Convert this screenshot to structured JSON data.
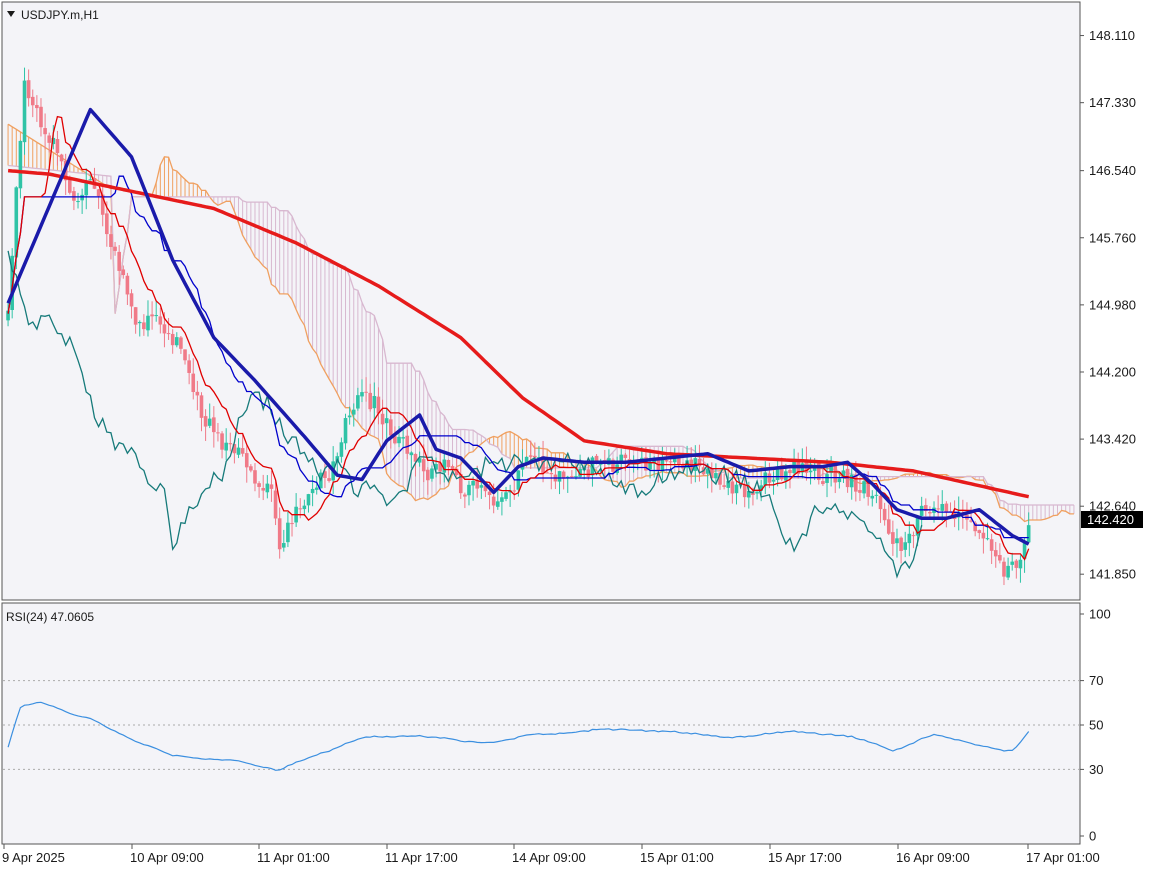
{
  "chart_title": "USDJPY.m,H1",
  "colors": {
    "background": "#f4f4f8",
    "bull_candle": "#2fc3a6",
    "bear_candle": "#f07a88",
    "tenkan": "#e00000",
    "kijun": "#0000cc",
    "chikou": "#167a7a",
    "senkou_a": "#f0a060",
    "senkou_b": "#d8b8d0",
    "ma_slow": "#e61b1b",
    "ma_fast": "#1a1aaa",
    "rsi_line": "#3b8fe0",
    "price_tag_bg": "#000000",
    "price_tag_text": "#ffffff"
  },
  "chart_data": [
    {
      "type": "line",
      "name": "USDJPY.m H1 price panel",
      "title": "USDJPY.m,H1",
      "ylim": [
        141.55,
        148.5
      ],
      "y_ticks": [
        "148.110",
        "147.330",
        "146.540",
        "145.760",
        "144.980",
        "144.200",
        "143.420",
        "142.640",
        "141.850"
      ],
      "x_ticks": [
        "9 Apr 2025",
        "10 Apr 09:00",
        "11 Apr 01:00",
        "11 Apr 17:00",
        "14 Apr 09:00",
        "15 Apr 01:00",
        "15 Apr 17:00",
        "16 Apr 09:00",
        "17 Apr 01:00"
      ],
      "current_price": "142.420",
      "close_anchors": [
        [
          0,
          144.95
        ],
        [
          4,
          147.6
        ],
        [
          8,
          147.1
        ],
        [
          12,
          146.8
        ],
        [
          16,
          146.2
        ],
        [
          20,
          146.4
        ],
        [
          24,
          145.9
        ],
        [
          28,
          145.3
        ],
        [
          32,
          144.7
        ],
        [
          36,
          144.9
        ],
        [
          40,
          144.6
        ],
        [
          44,
          144.2
        ],
        [
          48,
          143.6
        ],
        [
          52,
          143.4
        ],
        [
          56,
          143.3
        ],
        [
          60,
          142.9
        ],
        [
          64,
          142.9
        ],
        [
          66,
          142.2
        ],
        [
          70,
          142.6
        ],
        [
          74,
          142.9
        ],
        [
          78,
          143.0
        ],
        [
          82,
          143.6
        ],
        [
          86,
          143.9
        ],
        [
          90,
          143.8
        ],
        [
          94,
          143.4
        ],
        [
          98,
          143.3
        ],
        [
          102,
          142.9
        ],
        [
          106,
          143.2
        ],
        [
          110,
          142.8
        ],
        [
          114,
          142.9
        ],
        [
          118,
          142.7
        ],
        [
          122,
          142.8
        ],
        [
          126,
          143.2
        ],
        [
          130,
          143.1
        ],
        [
          134,
          143.0
        ],
        [
          138,
          143.0
        ],
        [
          142,
          143.1
        ],
        [
          146,
          143.1
        ],
        [
          150,
          143.2
        ],
        [
          154,
          143.1
        ],
        [
          158,
          143.1
        ],
        [
          162,
          143.2
        ],
        [
          166,
          143.1
        ],
        [
          170,
          143.1
        ],
        [
          174,
          142.9
        ],
        [
          178,
          142.8
        ],
        [
          182,
          142.9
        ],
        [
          186,
          143.0
        ],
        [
          190,
          143.1
        ],
        [
          194,
          143.1
        ],
        [
          198,
          143.0
        ],
        [
          202,
          143.0
        ],
        [
          206,
          142.9
        ],
        [
          210,
          142.8
        ],
        [
          214,
          142.3
        ],
        [
          218,
          142.2
        ],
        [
          222,
          142.6
        ],
        [
          226,
          142.6
        ],
        [
          230,
          142.5
        ],
        [
          234,
          142.5
        ],
        [
          238,
          142.2
        ],
        [
          242,
          141.9
        ],
        [
          244,
          141.9
        ],
        [
          246,
          142.0
        ],
        [
          248,
          142.42
        ]
      ],
      "series": [
        {
          "name": "Candles H1 (bullish / bearish)"
        },
        {
          "name": "MA slow (red)",
          "values_anchor": [
            [
              0,
              146.54
            ],
            [
              10,
              146.5
            ],
            [
              30,
              146.3
            ],
            [
              50,
              146.1
            ],
            [
              70,
              145.7
            ],
            [
              90,
              145.2
            ],
            [
              110,
              144.6
            ],
            [
              125,
              143.9
            ],
            [
              140,
              143.4
            ],
            [
              160,
              143.25
            ],
            [
              180,
              143.2
            ],
            [
              200,
              143.15
            ],
            [
              220,
              143.05
            ],
            [
              248,
              142.75
            ]
          ]
        },
        {
          "name": "MA fast (blue)",
          "values_anchor": [
            [
              0,
              145.0
            ],
            [
              20,
              147.25
            ],
            [
              30,
              146.7
            ],
            [
              40,
              145.5
            ],
            [
              50,
              144.6
            ],
            [
              60,
              144.1
            ],
            [
              72,
              143.45
            ],
            [
              80,
              143.0
            ],
            [
              86,
              142.95
            ],
            [
              92,
              143.4
            ],
            [
              100,
              143.7
            ],
            [
              104,
              143.3
            ],
            [
              110,
              143.2
            ],
            [
              118,
              142.8
            ],
            [
              124,
              143.1
            ],
            [
              130,
              143.2
            ],
            [
              140,
              143.15
            ],
            [
              150,
              143.15
            ],
            [
              160,
              143.2
            ],
            [
              170,
              143.25
            ],
            [
              180,
              143.05
            ],
            [
              190,
              143.1
            ],
            [
              198,
              143.1
            ],
            [
              204,
              143.15
            ],
            [
              210,
              142.9
            ],
            [
              216,
              142.6
            ],
            [
              222,
              142.5
            ],
            [
              228,
              142.5
            ],
            [
              236,
              142.6
            ],
            [
              244,
              142.3
            ],
            [
              248,
              142.2
            ]
          ]
        },
        {
          "name": "Ichimoku cloud (Senkou A / Senkou B)"
        },
        {
          "name": "Chikou span (teal)"
        }
      ]
    },
    {
      "type": "line",
      "name": "RSI panel",
      "title": "RSI(24) 47.0605",
      "ylim": [
        0,
        100
      ],
      "y_ticks": [
        "100",
        "70",
        "50",
        "30",
        "0"
      ],
      "levels": [
        70,
        50,
        30
      ],
      "series": [
        {
          "name": "RSI(24)",
          "current": 47.0605
        }
      ]
    }
  ]
}
